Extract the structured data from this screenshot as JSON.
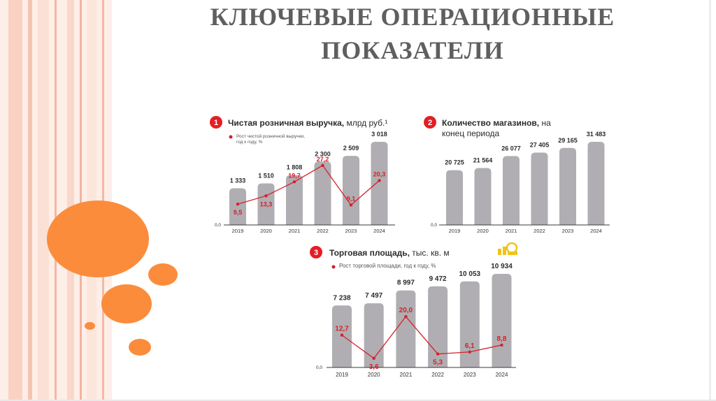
{
  "slide": {
    "title_line1": "КЛЮЧЕВЫЕ ОПЕРАЦИОННЫЕ",
    "title_line2": "ПОКАЗАТЕЛИ"
  },
  "colors": {
    "bar": "#b0aeb2",
    "line": "#d6202a",
    "badge": "#e31e24",
    "accent_circle": "#fb8c3c",
    "title": "#5f5f5f",
    "coin_icon": "#f0c419"
  },
  "chart_data": [
    {
      "type": "bar",
      "number": "1",
      "title": "Чистая розничная выручка,",
      "title_unit": "млрд руб.¹",
      "legend": "Рост чистой розничной выручки,",
      "legend_line2": "год к году, %",
      "zero_label": "0,0",
      "categories": [
        "2019",
        "2020",
        "2021",
        "2022",
        "2023",
        "2024"
      ],
      "values": [
        1333,
        1510,
        1808,
        2300,
        2509,
        3018
      ],
      "value_labels": [
        "1 333",
        "1 510",
        "1 808",
        "2 300",
        "2 509",
        "3 018"
      ],
      "ylim": [
        0,
        3018
      ],
      "growth": [
        9.5,
        13.3,
        19.7,
        27.2,
        9.1,
        20.3
      ],
      "growth_labels": [
        "9,5",
        "13,3",
        "19,7",
        "27,2",
        "9,1",
        "20,3"
      ],
      "growth_ylim": [
        0,
        30
      ]
    },
    {
      "type": "bar",
      "number": "2",
      "title": "Количество магазинов,",
      "title_unit": "на",
      "title_line2": "конец периода",
      "zero_label": "0,0",
      "categories": [
        "2019",
        "2020",
        "2021",
        "2022",
        "2023",
        "2024"
      ],
      "values": [
        20725,
        21564,
        26077,
        27405,
        29165,
        31483
      ],
      "value_labels": [
        "20 725",
        "21 564",
        "26 077",
        "27 405",
        "29 165",
        "31 483"
      ],
      "ylim": [
        0,
        31483
      ]
    },
    {
      "type": "bar",
      "number": "3",
      "title": "Торговая площадь,",
      "title_unit": "тыс. кв. м",
      "legend": "Рост торговой площади, год к году, %",
      "zero_label": "0,0",
      "categories": [
        "2019",
        "2020",
        "2021",
        "2022",
        "2023",
        "2024"
      ],
      "values": [
        7238,
        7497,
        8997,
        9472,
        10053,
        10934
      ],
      "value_labels": [
        "7 238",
        "7 497",
        "8 997",
        "9 472",
        "10 053",
        "10 934"
      ],
      "ylim": [
        0,
        10934
      ],
      "growth": [
        12.7,
        3.6,
        20.0,
        5.3,
        6.1,
        8.8
      ],
      "growth_labels": [
        "12,7",
        "3,6",
        "20,0",
        "5,3",
        "6,1",
        "8,8"
      ],
      "growth_ylim": [
        0,
        28
      ]
    }
  ]
}
